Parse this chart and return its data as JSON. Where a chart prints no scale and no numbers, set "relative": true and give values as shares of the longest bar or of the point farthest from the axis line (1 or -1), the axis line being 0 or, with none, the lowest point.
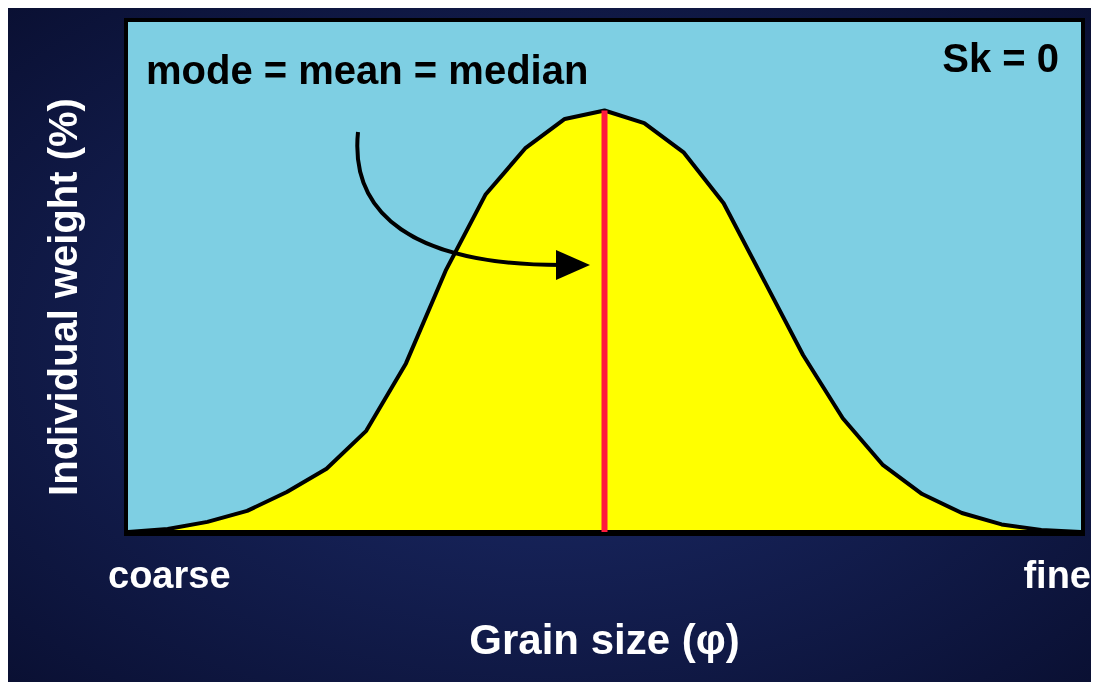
{
  "chart_data": {
    "type": "area",
    "relative": true,
    "xlabel": "Grain size (φ)",
    "ylabel": "Individual weight (%)",
    "categories": [
      null,
      null,
      null,
      null,
      null,
      null,
      null,
      null,
      null,
      null,
      null,
      null,
      null,
      null,
      null,
      null,
      null,
      null,
      null,
      null,
      null,
      null,
      null,
      null,
      null
    ],
    "values": [
      0,
      0.007,
      0.024,
      0.05,
      0.095,
      0.15,
      0.24,
      0.4,
      0.62,
      0.8,
      0.91,
      0.98,
      1,
      0.97,
      0.9,
      0.78,
      0.6,
      0.42,
      0.27,
      0.16,
      0.09,
      0.045,
      0.018,
      0.005,
      0
    ],
    "color": "#ffff00",
    "ref_lines": [
      {
        "axis": "x",
        "label": "mode = mean = median",
        "color": "#ff1a3c"
      }
    ],
    "annotations": [
      "Sk = 0",
      "coarse",
      "fine"
    ]
  }
}
